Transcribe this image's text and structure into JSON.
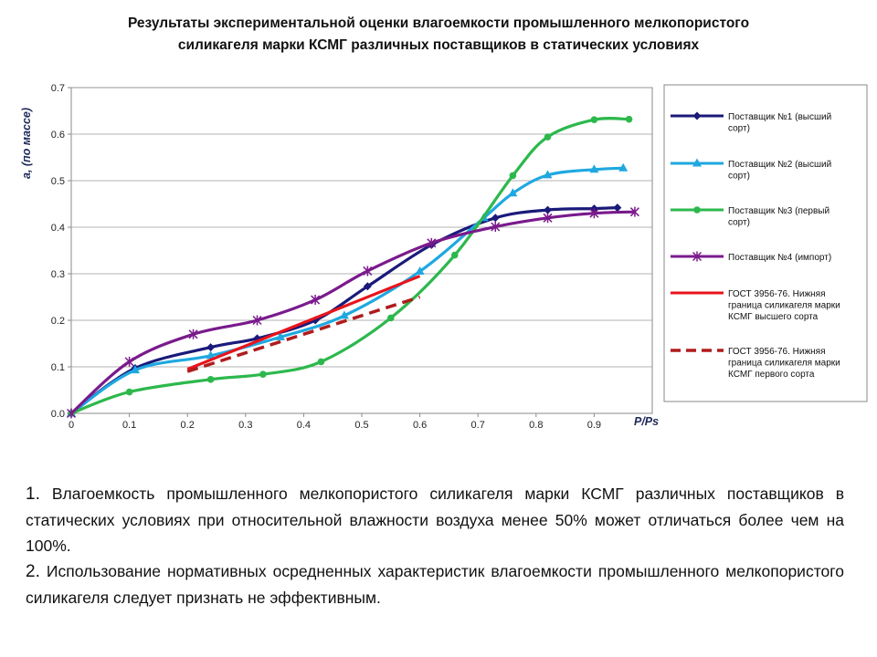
{
  "title": {
    "line1": "Результаты экспериментальной оценки влагоемкости промышленного мелкопористого",
    "line2": "силикагеля марки КСМГ различных поставщиков в статических условиях"
  },
  "chart_data": {
    "type": "line",
    "xlabel": "P/Ps",
    "ylabel": "а, (по массе)",
    "xlim": [
      0,
      1.0
    ],
    "ylim": [
      0,
      0.7
    ],
    "xticks": [
      "0",
      "0.1",
      "0.2",
      "0.3",
      "0.4",
      "0.5",
      "0.6",
      "0.7",
      "0.8",
      "0.9"
    ],
    "yticks": [
      "0.0",
      "0.1",
      "0.2",
      "0.3",
      "0.4",
      "0.5",
      "0.6",
      "0.7"
    ],
    "grid": "horizontal",
    "legend_position": "right",
    "series": [
      {
        "name": "Поставщик №1 (высший сорт)",
        "legend_lines": [
          "Поставщик №1 (высший",
          "сорт)"
        ],
        "color": "#1a1a7a",
        "marker": "diamond",
        "style": "solid",
        "x": [
          0,
          0.11,
          0.24,
          0.32,
          0.42,
          0.51,
          0.62,
          0.73,
          0.82,
          0.9,
          0.94
        ],
        "y": [
          0,
          0.097,
          0.142,
          0.161,
          0.2,
          0.273,
          0.362,
          0.42,
          0.437,
          0.44,
          0.442
        ]
      },
      {
        "name": "Поставщик №2 (высший сорт)",
        "legend_lines": [
          "Поставщик №2 (высший",
          "сорт)"
        ],
        "color": "#1fa8e0",
        "marker": "triangle",
        "style": "solid",
        "x": [
          0,
          0.11,
          0.24,
          0.36,
          0.47,
          0.6,
          0.71,
          0.76,
          0.82,
          0.9,
          0.95
        ],
        "y": [
          0,
          0.093,
          0.124,
          0.164,
          0.21,
          0.305,
          0.42,
          0.473,
          0.512,
          0.524,
          0.527
        ]
      },
      {
        "name": "Поставщик №3 (первый сорт)",
        "legend_lines": [
          "Поставщик №3 (первый",
          "сорт)"
        ],
        "color": "#2db84d",
        "marker": "circle",
        "style": "solid",
        "x": [
          0,
          0.1,
          0.24,
          0.33,
          0.43,
          0.55,
          0.66,
          0.76,
          0.82,
          0.9,
          0.96
        ],
        "y": [
          0,
          0.046,
          0.073,
          0.084,
          0.111,
          0.205,
          0.34,
          0.511,
          0.594,
          0.631,
          0.632
        ]
      },
      {
        "name": "Поставщик №4 (импорт)",
        "legend_lines": [
          "Поставщик №4 (импорт)"
        ],
        "color": "#7a1a8c",
        "marker": "star",
        "style": "solid",
        "x": [
          0,
          0.1,
          0.21,
          0.32,
          0.42,
          0.51,
          0.62,
          0.73,
          0.82,
          0.9,
          0.97
        ],
        "y": [
          0,
          0.111,
          0.17,
          0.2,
          0.244,
          0.306,
          0.366,
          0.401,
          0.42,
          0.43,
          0.433
        ]
      },
      {
        "name": "ГОСТ 3956-76. Нижняя граница силикагеля марки КСМГ высшего сорта",
        "legend_lines": [
          "ГОСТ 3956-76. Нижняя",
          "граница силикагеля марки",
          "КСМГ высшего сорта"
        ],
        "color": "#e8141b",
        "marker": "none",
        "style": "solid",
        "x": [
          0.2,
          0.6
        ],
        "y": [
          0.095,
          0.295
        ]
      },
      {
        "name": "ГОСТ 3956-76. Нижняя граница силикагеля марки КСМГ первого сорта",
        "legend_lines": [
          "ГОСТ 3956-76. Нижняя",
          "граница силикагеля марки",
          "КСМГ первого сорта"
        ],
        "color": "#b01c1c",
        "marker": "none",
        "style": "dashed",
        "x": [
          0.2,
          0.6
        ],
        "y": [
          0.09,
          0.25
        ]
      }
    ]
  },
  "conclusions": [
    {
      "num": "1.",
      "text": "Влагоемкость промышленного мелкопористого силикагеля марки КСМГ различных поставщиков в статических условиях при относительной влажности воздуха менее 50% может отличаться более чем на 100%."
    },
    {
      "num": "2.",
      "text": "Использование нормативных осредненных характеристик влагоемкости промышленного мелкопористого силикагеля следует признать не эффективным."
    }
  ]
}
